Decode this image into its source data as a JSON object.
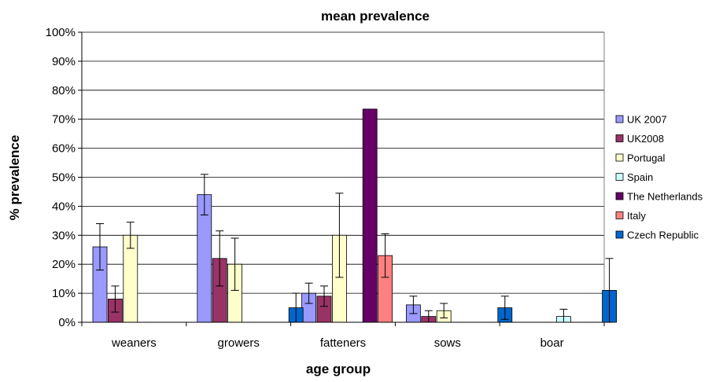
{
  "chart_data": {
    "type": "bar",
    "title": "mean prevalence",
    "xlabel": "age group",
    "ylabel": "% prevalence",
    "ylim": [
      0,
      100
    ],
    "yticks": [
      "0%",
      "10%",
      "20%",
      "30%",
      "40%",
      "50%",
      "60%",
      "70%",
      "80%",
      "90%",
      "100%"
    ],
    "grid": true,
    "legend_position": "right",
    "categories": [
      "weaners",
      "growers",
      "fatteners",
      "sows",
      "boar"
    ],
    "series": [
      {
        "name": "UK 2007",
        "color": "#9999ff",
        "values": [
          26,
          44,
          10,
          6,
          null
        ],
        "errors": [
          8,
          7,
          3.5,
          3,
          null
        ]
      },
      {
        "name": "UK2008",
        "color": "#993366",
        "values": [
          8,
          22,
          9,
          2,
          null
        ],
        "errors": [
          4.5,
          9.5,
          3.5,
          2,
          null
        ]
      },
      {
        "name": "Portugal",
        "color": "#ffffcc",
        "values": [
          30,
          20,
          30,
          4,
          null
        ],
        "errors": [
          4.5,
          9,
          14.5,
          2.5,
          null
        ]
      },
      {
        "name": "Spain",
        "color": "#ccffff",
        "values": [
          0,
          null,
          null,
          null,
          2
        ],
        "errors": [
          null,
          null,
          null,
          null,
          2.5
        ]
      },
      {
        "name": "The Netherlands",
        "color": "#660066",
        "values": [
          null,
          null,
          73.5,
          null,
          null
        ],
        "errors": [
          null,
          null,
          null,
          null,
          null
        ]
      },
      {
        "name": "Italy",
        "color": "#ff8080",
        "values": [
          null,
          null,
          23,
          null,
          null
        ],
        "errors": [
          null,
          null,
          7.5,
          null,
          null
        ]
      },
      {
        "name": "Czech Republic",
        "color": "#0066cc",
        "values": [
          null,
          5,
          null,
          5,
          11
        ],
        "errors": [
          null,
          5,
          null,
          4,
          11
        ]
      }
    ]
  }
}
